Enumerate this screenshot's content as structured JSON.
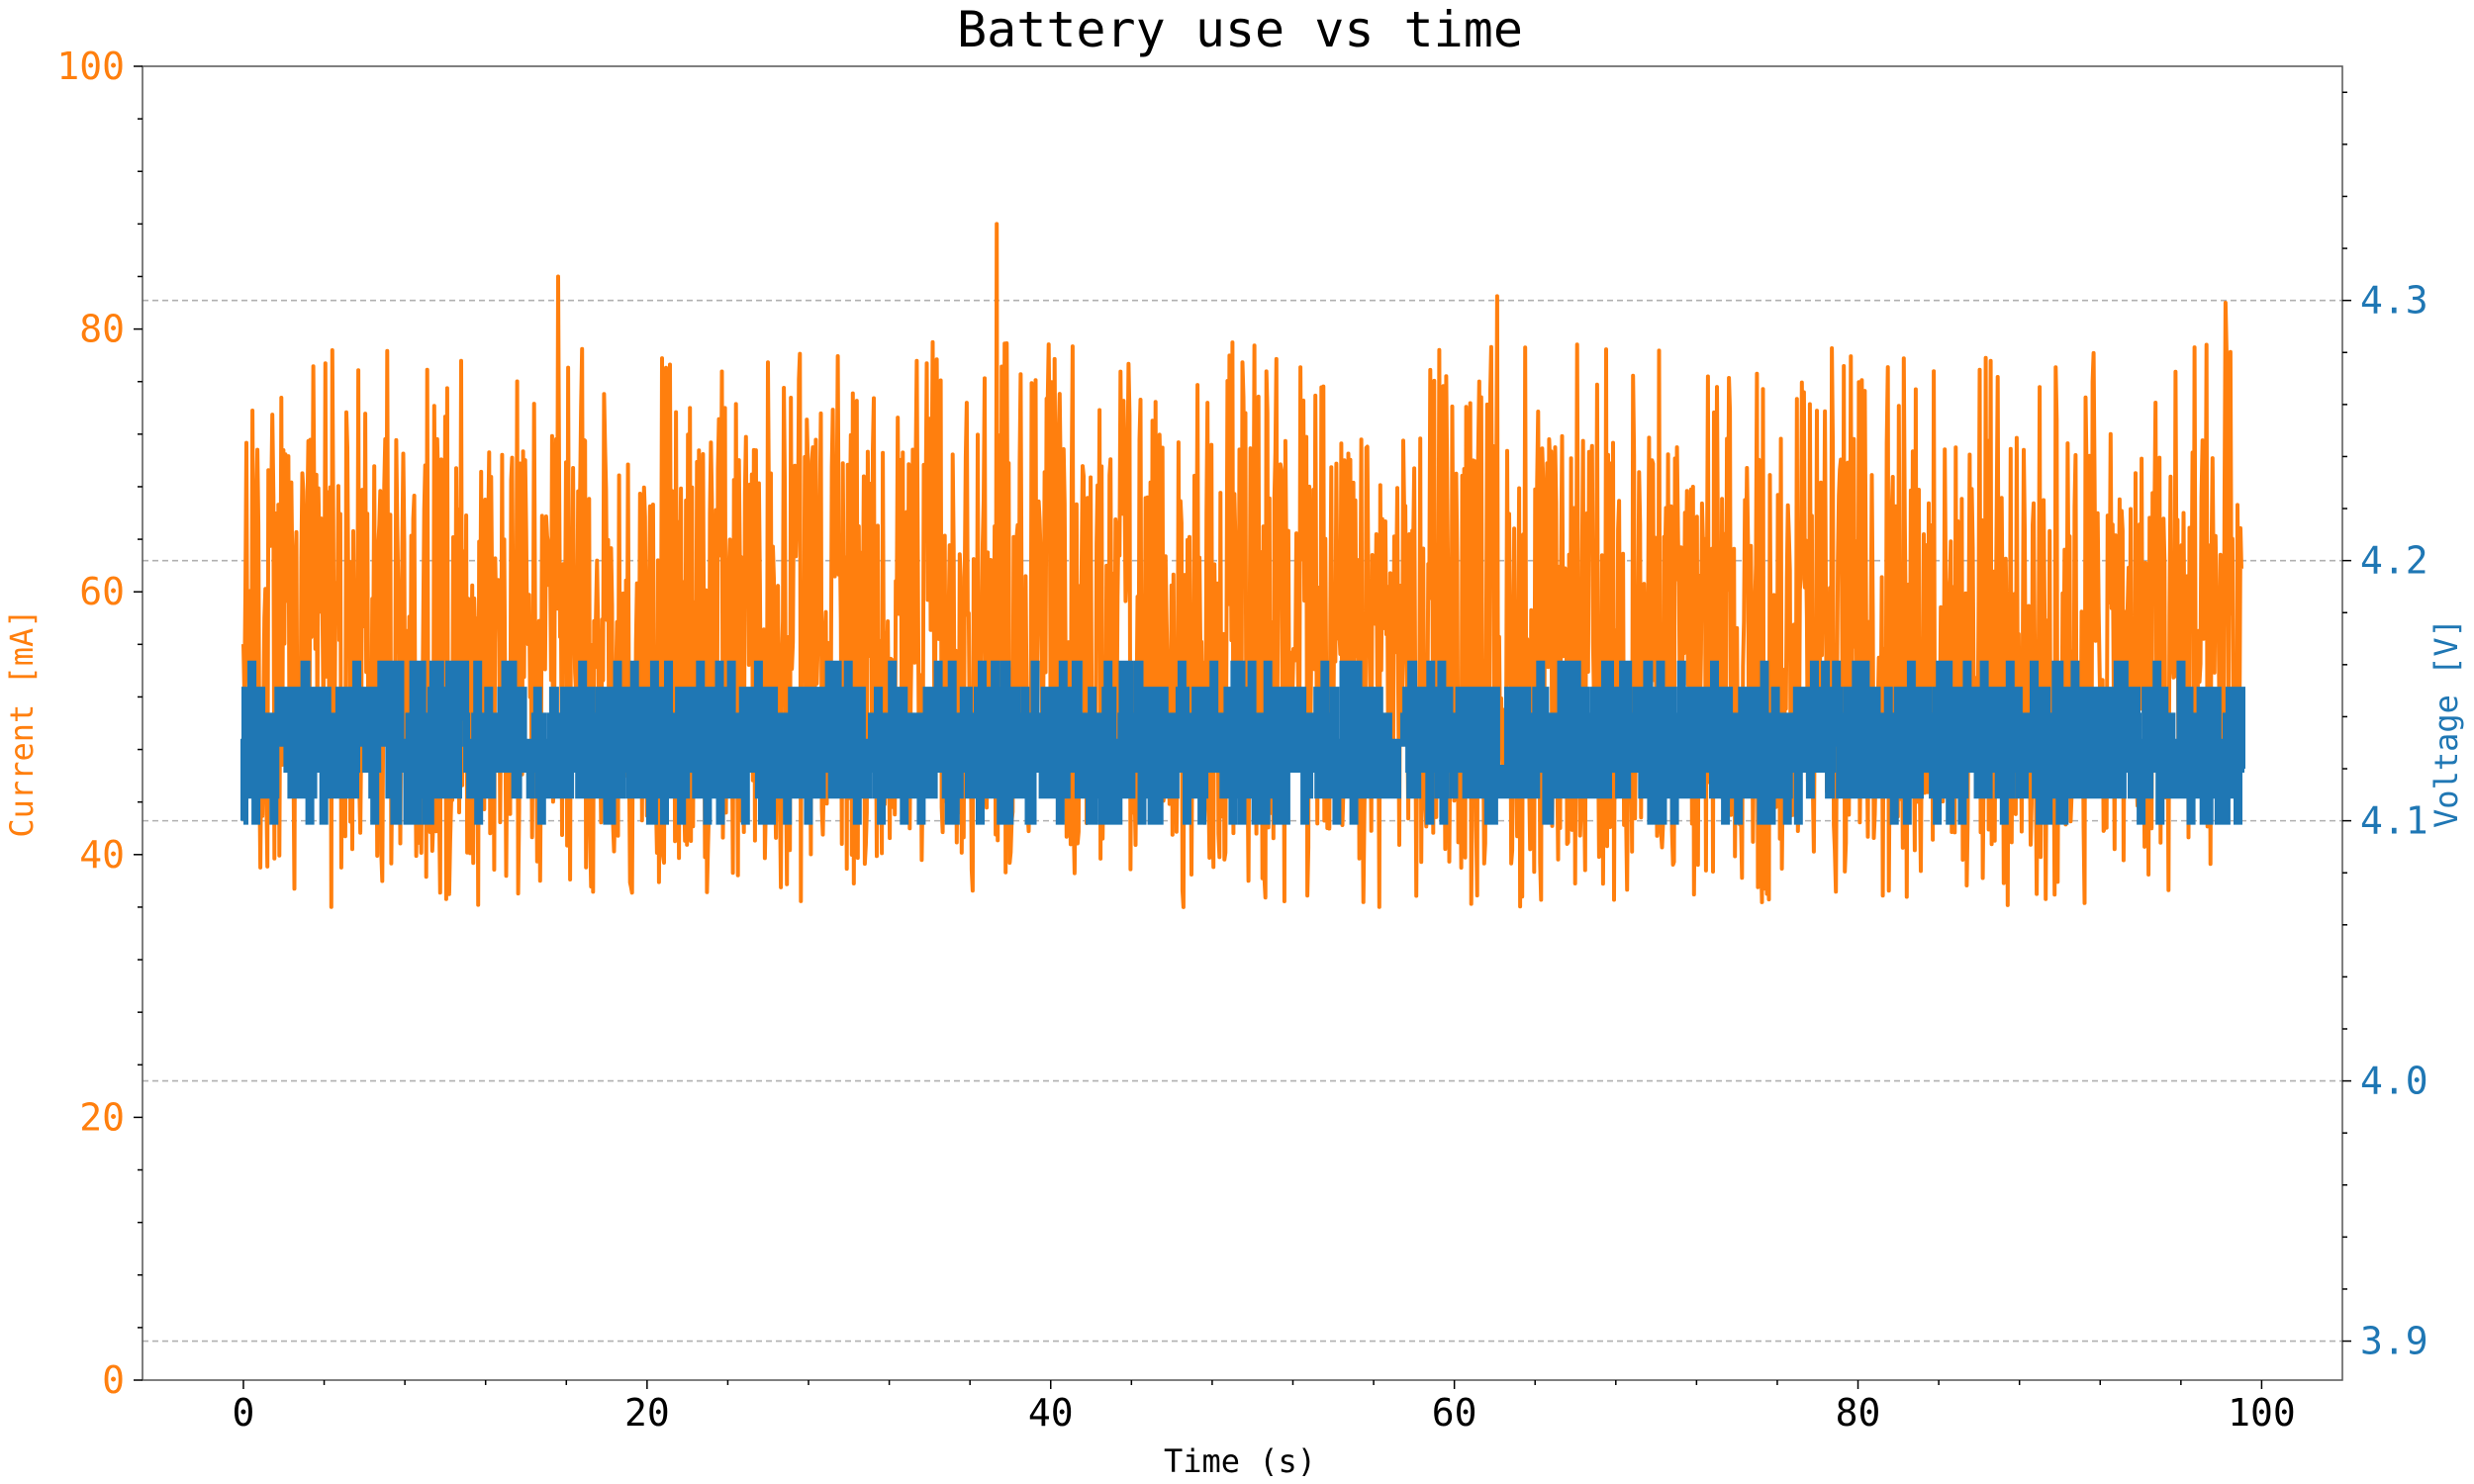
{
  "chart_data": {
    "type": "line",
    "title": "Battery use vs time",
    "xlabel": "Time (s)",
    "xlim": [
      -5,
      104
    ],
    "x_ticks": [
      0,
      20,
      40,
      60,
      80,
      100
    ],
    "x_range": [
      0,
      99
    ],
    "y_left": {
      "label": "Current [mA]",
      "ylim": [
        0,
        100
      ],
      "ticks": [
        0,
        20,
        40,
        60,
        80,
        100
      ],
      "color": "#ff7f0e"
    },
    "y_right": {
      "label": "Voltage [V]",
      "ylim": [
        3.885,
        4.39
      ],
      "ticks": [
        3.9,
        4.0,
        4.1,
        4.2,
        4.3
      ],
      "tick_labels": [
        "3.9",
        "4.0",
        "4.1",
        "4.2",
        "4.3"
      ],
      "color": "#1f77b4"
    },
    "grid": "horizontal dashed, aligned with right axis ticks",
    "series": [
      {
        "axis": "left",
        "color": "#ff7f0e",
        "baseline_range": [
          42,
          73
        ],
        "min": 35,
        "max": 88,
        "peaks": [
          {
            "x": 15.6,
            "y": 84
          },
          {
            "x": 37.3,
            "y": 88
          },
          {
            "x": 62.1,
            "y": 82.5
          },
          {
            "x": 98.2,
            "y": 82
          }
        ]
      },
      {
        "axis": "right",
        "color": "#1f77b4",
        "levels": [
          4.1,
          4.11,
          4.12,
          4.13,
          4.14,
          4.15,
          4.16
        ],
        "baseline_range": [
          4.11,
          4.15
        ]
      }
    ]
  }
}
